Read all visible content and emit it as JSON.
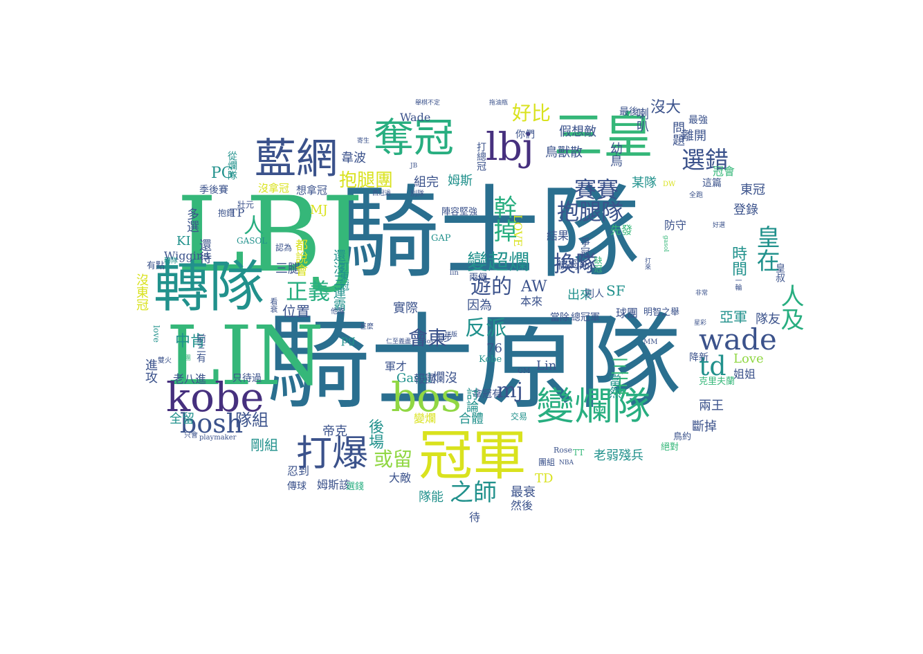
{
  "palette": {
    "teal_blue": "#2a6f8f",
    "blue": "#3b528b",
    "purple": "#46307e",
    "green": "#35b779",
    "lime": "#90d743",
    "yellow": "#d9e21e",
    "teal": "#21918c",
    "sea": "#28ae80"
  },
  "words": [
    "騎士隊",
    "騎士原隊",
    "LBJ",
    "LIN",
    "轉隊",
    "kobe",
    "bos",
    "冠軍",
    "奪冠",
    "lbj",
    "三皇",
    "藍網",
    "變爛隊",
    "打爆",
    "wade",
    "選錯",
    "賽賽",
    "抱腿隊",
    "抱腿團",
    "人及",
    "皇在",
    "幹掉",
    "變超爛",
    "換隊",
    "反派",
    "會東",
    "正義",
    "bosh",
    "好比",
    "遊的",
    "td",
    "mj",
    "或留",
    "之師",
    "三王",
    "PG",
    "沒大",
    "喇叭",
    "假想敵",
    "鳥獸散",
    "人",
    "時間",
    "亞軍",
    "離開",
    "東冠",
    "登錄",
    "AW",
    "SF",
    "Love",
    "Lin",
    "實際",
    "因為",
    "隊組",
    "中肯",
    "位置",
    "Gasol",
    "爛沒",
    "76",
    "TD",
    "最衰",
    "後場",
    "帝克",
    "隊友",
    "全留",
    "兩王",
    "斷掉",
    "老弱殘兵",
    "姐姐",
    "降新",
    "進攻",
    "剛組",
    "軍才",
    "報團",
    "組完",
    "韋波",
    "姆斯",
    "MJ",
    "KI",
    "多選",
    "沒東冠",
    "三腿",
    "還待",
    "都說會",
    "還沒三連霸",
    "出來",
    "本來",
    "別人",
    "球團",
    "當除",
    "總冠軍",
    "明智之舉",
    "被姆斯",
    "防守",
    "先發",
    "結果",
    "某隊",
    "冠會",
    "你們",
    "最後",
    "最強",
    "這篇",
    "問題",
    "幼鳥",
    "Wade",
    "LOVE",
    "陣容堅強",
    "GAP",
    "TP",
    "Wiggins",
    "有點",
    "GASOL",
    "想拿冠",
    "沒拿冠",
    "季後賽",
    "從爛隊",
    "打總冠",
    "打東冠",
    "pg",
    "傳球",
    "姆斯該",
    "忍到",
    "只待過",
    "老八進",
    "前三有",
    "拿冠有",
    "交易",
    "然後",
    "待",
    "大敵",
    "隊能",
    "選錢",
    "Kobe",
    "走步",
    "當然",
    "變爛",
    "討論",
    "合體",
    "兩個",
    "絕對",
    "鳥約",
    "克里夫蘭",
    "皇叔",
    "DW",
    "lin",
    "Rose",
    "NBA",
    "TT",
    "團組",
    "MM",
    "playmaker",
    "love",
    "雙火",
    "只會",
    "GM",
    "全跑",
    "缺冠",
    "爭冠",
    "他隊",
    "認為",
    "抱錯",
    "壯元",
    "轉隊",
    "舉棋不定",
    "拖油瓶",
    "寄生",
    "JB",
    "西冠過",
    "別隊",
    "看衰",
    "甚麼",
    "仁至義盡",
    "Bos",
    "拼版",
    "組團",
    "一輪",
    "好選",
    "非常",
    "星彩",
    "gasol",
    "打來"
  ]
}
